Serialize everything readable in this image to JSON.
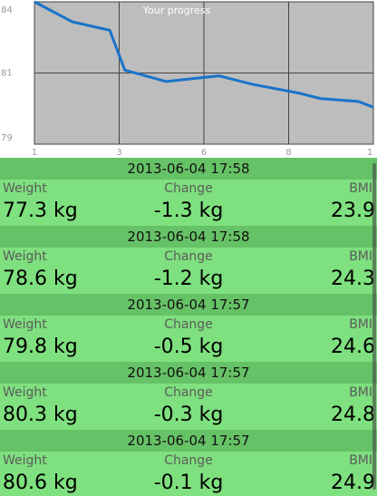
{
  "chart_data": {
    "type": "line",
    "title": "Your progress",
    "x": [
      1,
      2,
      3,
      3.4,
      4.5,
      5.9,
      6.8,
      8,
      8.6,
      9.6,
      10
    ],
    "series": [
      {
        "values": [
          84.0,
          83.3,
          83.0,
          81.6,
          81.2,
          81.4,
          81.1,
          80.8,
          80.6,
          80.5,
          80.3
        ]
      }
    ],
    "xticks": [
      "1",
      "3",
      "6",
      "8",
      "1"
    ],
    "yticks": [
      "84",
      "81",
      "79"
    ],
    "xlim": [
      1,
      10
    ],
    "ylim": [
      79,
      84
    ],
    "grid": true,
    "colors": {
      "line": "#1a73c9",
      "background": "#bdbdbd",
      "grid": "#444444"
    }
  },
  "labels": {
    "weight": "Weight",
    "change": "Change",
    "bmi": "BMI"
  },
  "entries": [
    {
      "datetime": "2013-06-04 17:58",
      "weight": "77.3 kg",
      "change": "-1.3 kg",
      "bmi": "23.9"
    },
    {
      "datetime": "2013-06-04 17:58",
      "weight": "78.6 kg",
      "change": "-1.2 kg",
      "bmi": "24.3"
    },
    {
      "datetime": "2013-06-04 17:57",
      "weight": "79.8 kg",
      "change": "-0.5 kg",
      "bmi": "24.6"
    },
    {
      "datetime": "2013-06-04 17:57",
      "weight": "80.3 kg",
      "change": "-0.3 kg",
      "bmi": "24.8"
    },
    {
      "datetime": "2013-06-04 17:57",
      "weight": "80.6 kg",
      "change": "-0.1 kg",
      "bmi": "24.9"
    }
  ]
}
